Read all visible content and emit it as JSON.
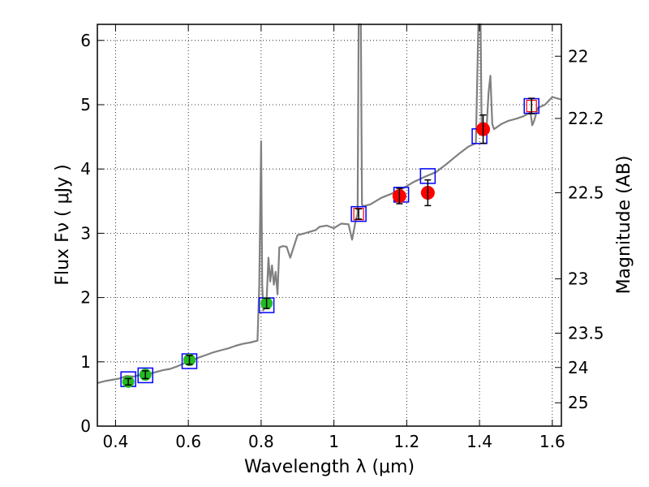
{
  "chart_data": {
    "type": "line",
    "xlabel": "Wavelength  λ (μm)",
    "ylabel": "Flux  Fν  ( μJy )",
    "ylabel_right": "Magnitude (AB)",
    "xlim": [
      0.35,
      1.625
    ],
    "ylim": [
      0,
      6.25
    ],
    "x_ticks": [
      0.4,
      0.6,
      0.8,
      1.0,
      1.2,
      1.4,
      1.6
    ],
    "x_tick_labels": [
      "0.4",
      "0.6",
      "0.8",
      "1",
      "1.2",
      "1.4",
      "1.6"
    ],
    "y_ticks": [
      0,
      1,
      2,
      3,
      4,
      5,
      6
    ],
    "y_tick_labels": [
      "0",
      "1",
      "2",
      "3",
      "4",
      "5",
      "6"
    ],
    "right_ticks": [
      22,
      22.2,
      22.5,
      23,
      23.5,
      24,
      25
    ],
    "right_tick_labels": [
      "22",
      "22.2",
      "22.5",
      "23",
      "23.5",
      "24",
      "25"
    ],
    "grid": true,
    "colors": {
      "sed": "#808080",
      "model_box": "#0000ff",
      "model_box_inner": "#ff0000",
      "detection_green": "#22bb22",
      "detection_red": "#ff0000",
      "errorbar": "#000000"
    },
    "series": [
      {
        "style": "line",
        "x": [
          0.35,
          0.37,
          0.39,
          0.41,
          0.43,
          0.45,
          0.47,
          0.49,
          0.51,
          0.53,
          0.55,
          0.57,
          0.59,
          0.61,
          0.63,
          0.65,
          0.67,
          0.69,
          0.71,
          0.73,
          0.75,
          0.77,
          0.79,
          0.795,
          0.8,
          0.803,
          0.806,
          0.81,
          0.815,
          0.82,
          0.825,
          0.83,
          0.835,
          0.84,
          0.845,
          0.85,
          0.86,
          0.87,
          0.88,
          0.9,
          0.92,
          0.95,
          0.96,
          0.98,
          1.0,
          1.02,
          1.04,
          1.05,
          1.06,
          1.065,
          1.068,
          1.071,
          1.074,
          1.077,
          1.08,
          1.1,
          1.13,
          1.16,
          1.19,
          1.22,
          1.25,
          1.28,
          1.31,
          1.34,
          1.37,
          1.39,
          1.397,
          1.4,
          1.403,
          1.406,
          1.41,
          1.42,
          1.425,
          1.43,
          1.435,
          1.44,
          1.46,
          1.48,
          1.5,
          1.52,
          1.54,
          1.545,
          1.55,
          1.56,
          1.58,
          1.6,
          1.625
        ],
        "y": [
          0.67,
          0.7,
          0.72,
          0.74,
          0.78,
          0.77,
          0.8,
          0.81,
          0.84,
          0.87,
          0.89,
          0.93,
          0.98,
          1.02,
          1.07,
          1.11,
          1.15,
          1.18,
          1.21,
          1.25,
          1.28,
          1.3,
          1.33,
          2.2,
          4.43,
          2.2,
          1.8,
          1.86,
          1.95,
          2.62,
          2.25,
          2.5,
          2.2,
          2.4,
          2.05,
          2.78,
          2.8,
          2.79,
          2.62,
          2.97,
          3.0,
          3.05,
          3.1,
          3.12,
          3.08,
          3.15,
          3.14,
          2.9,
          3.2,
          3.3,
          6.3,
          6.3,
          6.3,
          3.45,
          3.42,
          3.45,
          3.55,
          3.62,
          3.7,
          3.8,
          3.88,
          3.95,
          4.08,
          4.22,
          4.35,
          4.4,
          6.3,
          6.3,
          6.3,
          4.55,
          4.55,
          4.68,
          5.2,
          5.45,
          4.7,
          4.62,
          4.7,
          4.75,
          4.78,
          4.82,
          4.88,
          4.68,
          4.75,
          4.95,
          5.0,
          5.12,
          5.08
        ]
      },
      {
        "style": "box",
        "x": [
          0.435,
          0.482,
          0.603,
          0.815,
          1.068,
          1.185,
          1.258,
          1.4,
          1.543
        ],
        "y": [
          0.73,
          0.79,
          1.01,
          1.88,
          3.3,
          3.6,
          3.89,
          4.51,
          4.98
        ]
      },
      {
        "style": "circle-green",
        "x": [
          0.435,
          0.482,
          0.603,
          0.815
        ],
        "y": [
          0.69,
          0.8,
          1.03,
          1.91
        ],
        "err": [
          0.05,
          0.06,
          0.07,
          0.08
        ]
      },
      {
        "style": "circle-red",
        "x": [
          1.18,
          1.258,
          1.41
        ],
        "y": [
          3.58,
          3.63,
          4.62
        ],
        "err": [
          0.12,
          0.2,
          0.22
        ]
      },
      {
        "style": "errorbar-only",
        "x": [
          1.068,
          1.543
        ],
        "y": [
          3.3,
          4.98
        ],
        "err": [
          0.08,
          0.12
        ]
      }
    ]
  }
}
